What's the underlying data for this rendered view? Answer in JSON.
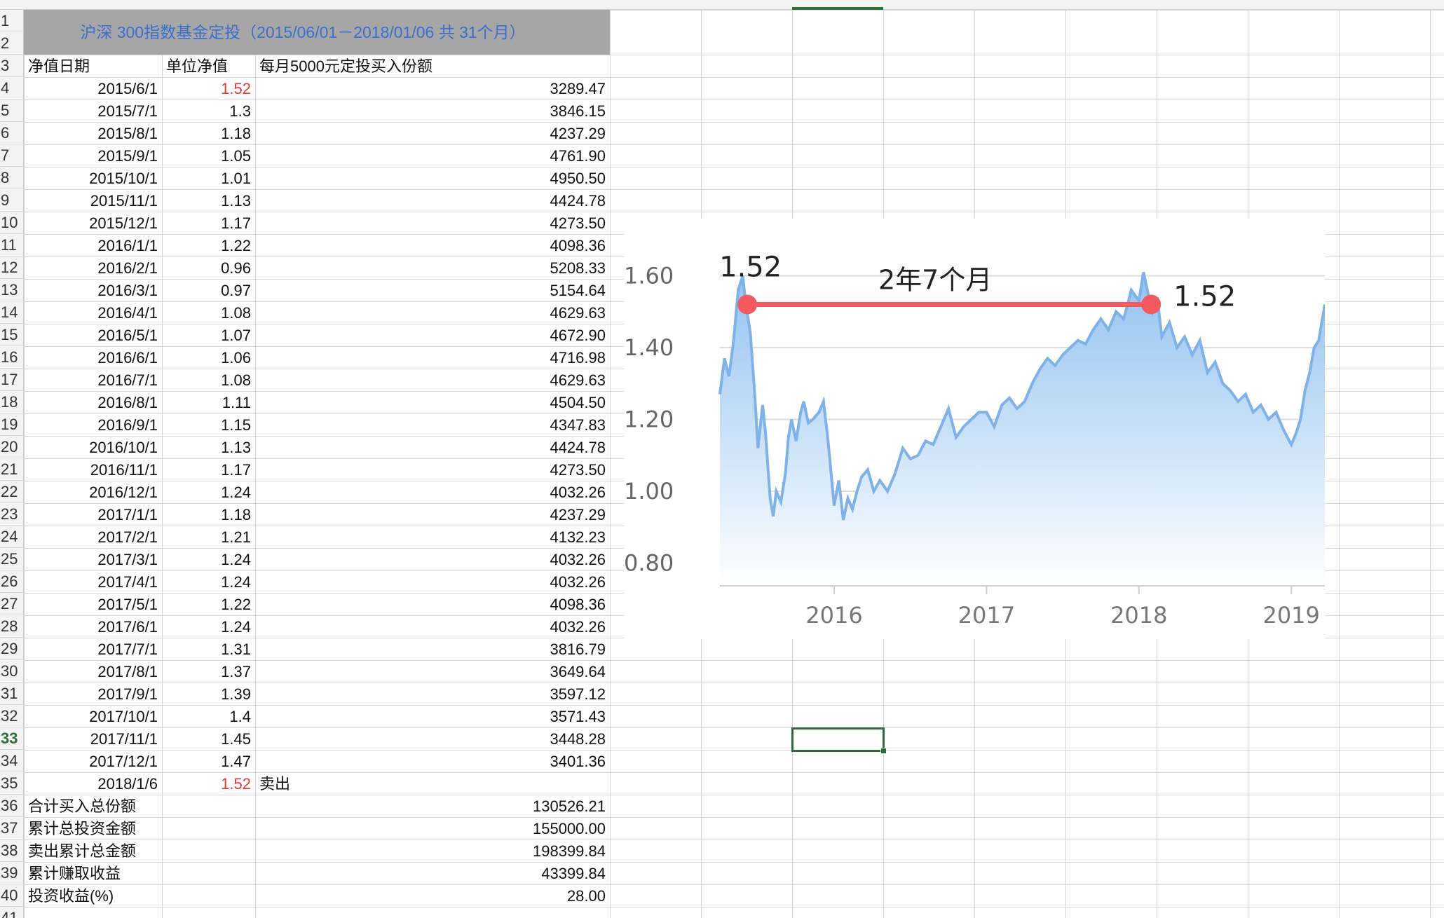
{
  "sheet": {
    "title": "沪深 300指数基金定投（2015/06/01－2018/01/06 共 31个月）",
    "headers": [
      "净值日期",
      "单位净值",
      "每月5000元定投买入份额"
    ],
    "rows": [
      {
        "date": "2015/6/1",
        "nav": "1.52",
        "shares": "3289.47",
        "highlight": true
      },
      {
        "date": "2015/7/1",
        "nav": "1.3",
        "shares": "3846.15"
      },
      {
        "date": "2015/8/1",
        "nav": "1.18",
        "shares": "4237.29"
      },
      {
        "date": "2015/9/1",
        "nav": "1.05",
        "shares": "4761.90"
      },
      {
        "date": "2015/10/1",
        "nav": "1.01",
        "shares": "4950.50"
      },
      {
        "date": "2015/11/1",
        "nav": "1.13",
        "shares": "4424.78"
      },
      {
        "date": "2015/12/1",
        "nav": "1.17",
        "shares": "4273.50"
      },
      {
        "date": "2016/1/1",
        "nav": "1.22",
        "shares": "4098.36"
      },
      {
        "date": "2016/2/1",
        "nav": "0.96",
        "shares": "5208.33"
      },
      {
        "date": "2016/3/1",
        "nav": "0.97",
        "shares": "5154.64"
      },
      {
        "date": "2016/4/1",
        "nav": "1.08",
        "shares": "4629.63"
      },
      {
        "date": "2016/5/1",
        "nav": "1.07",
        "shares": "4672.90"
      },
      {
        "date": "2016/6/1",
        "nav": "1.06",
        "shares": "4716.98"
      },
      {
        "date": "2016/7/1",
        "nav": "1.08",
        "shares": "4629.63"
      },
      {
        "date": "2016/8/1",
        "nav": "1.11",
        "shares": "4504.50"
      },
      {
        "date": "2016/9/1",
        "nav": "1.15",
        "shares": "4347.83"
      },
      {
        "date": "2016/10/1",
        "nav": "1.13",
        "shares": "4424.78"
      },
      {
        "date": "2016/11/1",
        "nav": "1.17",
        "shares": "4273.50"
      },
      {
        "date": "2016/12/1",
        "nav": "1.24",
        "shares": "4032.26"
      },
      {
        "date": "2017/1/1",
        "nav": "1.18",
        "shares": "4237.29"
      },
      {
        "date": "2017/2/1",
        "nav": "1.21",
        "shares": "4132.23"
      },
      {
        "date": "2017/3/1",
        "nav": "1.24",
        "shares": "4032.26"
      },
      {
        "date": "2017/4/1",
        "nav": "1.24",
        "shares": "4032.26"
      },
      {
        "date": "2017/5/1",
        "nav": "1.22",
        "shares": "4098.36"
      },
      {
        "date": "2017/6/1",
        "nav": "1.24",
        "shares": "4032.26"
      },
      {
        "date": "2017/7/1",
        "nav": "1.31",
        "shares": "3816.79"
      },
      {
        "date": "2017/8/1",
        "nav": "1.37",
        "shares": "3649.64"
      },
      {
        "date": "2017/9/1",
        "nav": "1.39",
        "shares": "3597.12"
      },
      {
        "date": "2017/10/1",
        "nav": "1.4",
        "shares": "3571.43"
      },
      {
        "date": "2017/11/1",
        "nav": "1.45",
        "shares": "3448.28"
      },
      {
        "date": "2017/12/1",
        "nav": "1.47",
        "shares": "3401.36"
      },
      {
        "date": "2018/1/6",
        "nav": "1.52",
        "shares": "卖出",
        "highlight": true,
        "sell": true
      }
    ],
    "summary": [
      {
        "label": "合计买入总份额",
        "value": "130526.21"
      },
      {
        "label": "累计总投资金额",
        "value": "155000.00"
      },
      {
        "label": "卖出累计总金额",
        "value": "198399.84"
      },
      {
        "label": "累计赚取收益",
        "value": "43399.84"
      },
      {
        "label": "投资收益(%)",
        "value": "28.00"
      }
    ],
    "row_numbers": [
      "1",
      "2",
      "3",
      "4",
      "5",
      "6",
      "7",
      "8",
      "9",
      "10",
      "11",
      "12",
      "13",
      "14",
      "15",
      "16",
      "17",
      "18",
      "19",
      "20",
      "21",
      "22",
      "23",
      "24",
      "25",
      "26",
      "27",
      "28",
      "29",
      "30",
      "31",
      "32",
      "33",
      "34",
      "35",
      "36",
      "37",
      "38",
      "39",
      "40",
      "41"
    ],
    "active_row": "33",
    "highlight_color": "#e53935",
    "title_color": "#3b6fd1"
  },
  "chart_data": {
    "type": "area",
    "title": "",
    "xlabel": "",
    "ylabel": "",
    "xlim": [
      2015.25,
      2019.22
    ],
    "ylim": [
      0.76,
      1.72
    ],
    "yticks": [
      "1.60",
      "1.40",
      "1.20",
      "1.00",
      "0.80"
    ],
    "ytick_values": [
      1.6,
      1.4,
      1.2,
      1.0,
      0.8
    ],
    "xticks": [
      "2016",
      "2017",
      "2018",
      "2019"
    ],
    "xtick_values": [
      2016,
      2017,
      2018,
      2019
    ],
    "series": [
      {
        "x": [
          2015.25,
          2015.28,
          2015.31,
          2015.34,
          2015.37,
          2015.4,
          2015.42,
          2015.45,
          2015.48,
          2015.5,
          2015.53,
          2015.55,
          2015.58,
          2015.6,
          2015.62,
          2015.65,
          2015.68,
          2015.7,
          2015.72,
          2015.75,
          2015.78,
          2015.8,
          2015.83,
          2015.86,
          2015.9,
          2015.93,
          2015.96,
          2016.0,
          2016.03,
          2016.06,
          2016.09,
          2016.12,
          2016.15,
          2016.18,
          2016.22,
          2016.26,
          2016.3,
          2016.35,
          2016.4,
          2016.45,
          2016.5,
          2016.55,
          2016.6,
          2016.65,
          2016.7,
          2016.75,
          2016.8,
          2016.85,
          2016.9,
          2016.95,
          2017.0,
          2017.05,
          2017.1,
          2017.15,
          2017.2,
          2017.25,
          2017.3,
          2017.35,
          2017.4,
          2017.45,
          2017.5,
          2017.55,
          2017.6,
          2017.65,
          2017.7,
          2017.75,
          2017.8,
          2017.85,
          2017.9,
          2017.95,
          2018.0,
          2018.03,
          2018.06,
          2018.09,
          2018.12,
          2018.15,
          2018.2,
          2018.25,
          2018.3,
          2018.35,
          2018.4,
          2018.45,
          2018.5,
          2018.55,
          2018.6,
          2018.65,
          2018.7,
          2018.75,
          2018.8,
          2018.85,
          2018.9,
          2018.95,
          2019.0,
          2019.03,
          2019.06,
          2019.09,
          2019.12,
          2019.15,
          2019.18,
          2019.22
        ],
        "y": [
          1.27,
          1.37,
          1.32,
          1.42,
          1.56,
          1.6,
          1.52,
          1.44,
          1.26,
          1.12,
          1.24,
          1.16,
          0.98,
          0.93,
          1.0,
          0.97,
          1.05,
          1.15,
          1.2,
          1.14,
          1.22,
          1.25,
          1.19,
          1.2,
          1.22,
          1.25,
          1.14,
          0.96,
          1.03,
          0.92,
          0.98,
          0.95,
          1.0,
          1.04,
          1.06,
          1.0,
          1.03,
          1.0,
          1.05,
          1.12,
          1.09,
          1.1,
          1.14,
          1.13,
          1.18,
          1.23,
          1.15,
          1.18,
          1.2,
          1.22,
          1.22,
          1.18,
          1.24,
          1.26,
          1.23,
          1.25,
          1.3,
          1.34,
          1.37,
          1.35,
          1.38,
          1.4,
          1.42,
          1.41,
          1.45,
          1.48,
          1.45,
          1.5,
          1.48,
          1.56,
          1.53,
          1.61,
          1.55,
          1.5,
          1.54,
          1.43,
          1.47,
          1.4,
          1.43,
          1.38,
          1.42,
          1.33,
          1.36,
          1.3,
          1.28,
          1.25,
          1.27,
          1.22,
          1.24,
          1.2,
          1.22,
          1.17,
          1.13,
          1.16,
          1.2,
          1.28,
          1.33,
          1.4,
          1.42,
          1.52
        ]
      }
    ],
    "annotations": {
      "start_label": "1.52",
      "end_label": "1.52",
      "span_label": "2年7个月",
      "start_x": 2015.43,
      "end_x": 2018.08,
      "level": 1.52
    },
    "colors": {
      "line": "#7fb2e8",
      "fill_top": "#8ec0f0",
      "fill_bottom": "#ffffff",
      "marker": "#f25a5f",
      "grid": "#dddddd"
    },
    "grid": true,
    "legend": "none"
  }
}
